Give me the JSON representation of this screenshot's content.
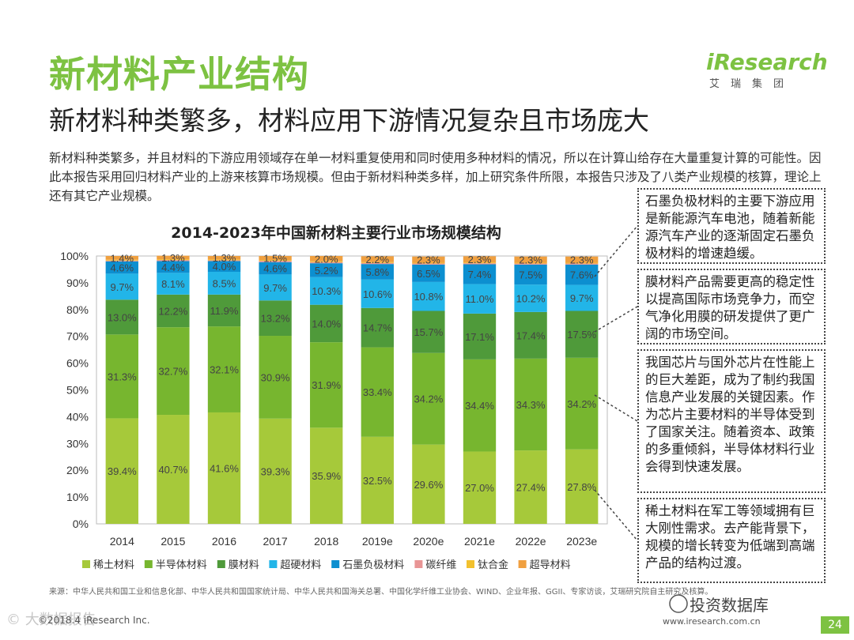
{
  "page": {
    "title": "新材料产业结构",
    "subtitle": "新材料种类繁多，材料应用下游情况复杂且市场庞大",
    "intro": "新材料种类繁多，并且材料的下游应用领域存在单一材料重复使用和同时使用多种材料的情况，所以在计算山给存在大量重复计算的可能性。因此本报告采用回归材料产业的上游来核算市场规模。但由于新材料种类多样，加上研究条件所限，本报告只涉及了八类产业规模的核算，理论上还有其它产业规模。",
    "source": "来源：中华人民共和国工业和信息化部、中华人民共和国国家统计局、中华人民共和国海关总署、中国化学纤维工业协会、WIND、企业年报、GGII、专家访谈，艾瑞研究院自主研究及核算。",
    "footer_left": "©2018.4 iResearch Inc.",
    "footer_right": "www.iresearch.com.cn",
    "page_number": "24"
  },
  "logo": {
    "main": "iResearch",
    "sub": "艾瑞集团"
  },
  "watermark": "© 大数据报告",
  "wechat_label": "投资数据库",
  "callouts": [
    {
      "text": "石墨负极材料的主要下游应用是新能源汽车电池，随着新能源汽车产业的逐渐固定石墨负极材料的增速趋缓。"
    },
    {
      "text": "膜材料产品需要更高的稳定性以提高国际市场竞争力，而空气净化用膜的研发提供了更广阔的市场空间。"
    },
    {
      "text": "我国芯片与国外芯片在性能上的巨大差距，成为了制约我国信息产业发展的关键因素。作为芯片主要材料的半导体受到了国家关注。随着资本、政策的多重倾斜，半导体材料行业会得到快速发展。"
    },
    {
      "text": "稀土材料在军工等领域拥有巨大刚性需求。去产能背景下，规模的增长转变为低端到高端产品的结构过渡。"
    }
  ],
  "chart_data": {
    "type": "bar",
    "stacked": true,
    "title": "2014-2023年中国新材料主要行业市场规模结构",
    "categories": [
      "2014",
      "2015",
      "2016",
      "2017",
      "2018",
      "2019e",
      "2020e",
      "2021e",
      "2022e",
      "2023e"
    ],
    "ylim": [
      0,
      100
    ],
    "ytick_labels": [
      "0%",
      "10%",
      "20%",
      "30%",
      "40%",
      "50%",
      "60%",
      "70%",
      "80%",
      "90%",
      "100%"
    ],
    "legend_position": "bottom",
    "series": [
      {
        "name": "稀土材料",
        "color": "#a6c93a",
        "values": [
          39.4,
          40.7,
          41.6,
          39.3,
          35.9,
          32.5,
          29.6,
          27.0,
          27.4,
          27.8
        ]
      },
      {
        "name": "半导体材料",
        "color": "#77b62f",
        "values": [
          31.3,
          32.7,
          32.1,
          30.9,
          31.9,
          33.4,
          34.2,
          34.4,
          34.3,
          34.2
        ]
      },
      {
        "name": "膜材料",
        "color": "#4f9a3a",
        "values": [
          13.0,
          12.2,
          11.9,
          13.2,
          14.0,
          14.7,
          15.7,
          17.1,
          17.4,
          17.5
        ]
      },
      {
        "name": "超硬材料",
        "color": "#22b5e8",
        "values": [
          9.7,
          8.1,
          8.5,
          9.7,
          10.3,
          10.6,
          10.8,
          11.0,
          10.2,
          9.7
        ]
      },
      {
        "name": "石墨负极材料",
        "color": "#0c8fd0",
        "values": [
          4.6,
          4.4,
          4.0,
          4.6,
          5.2,
          5.8,
          6.5,
          7.4,
          7.5,
          7.6
        ]
      },
      {
        "name": "碳纤维",
        "color": "#e89595",
        "values": [
          0.3,
          0.4,
          0.3,
          0.5,
          0.4,
          0.4,
          0.4,
          0.4,
          0.4,
          0.4
        ]
      },
      {
        "name": "钛合金",
        "color": "#f2c12e",
        "values": [
          0.3,
          0.3,
          0.3,
          0.3,
          0.3,
          0.3,
          0.3,
          0.3,
          0.3,
          0.3
        ]
      },
      {
        "name": "超导材料",
        "color": "#f0a040",
        "values": [
          1.4,
          1.3,
          1.3,
          1.5,
          2.0,
          2.2,
          2.3,
          2.3,
          2.3,
          2.3
        ]
      }
    ],
    "label_series": [
      0,
      1,
      2,
      3,
      4,
      7
    ],
    "data_labels": [
      [
        "39.4%",
        "40.7%",
        "41.6%",
        "39.3%",
        "35.9%",
        "32.5%",
        "29.6%",
        "27.0%",
        "27.4%",
        "27.8%"
      ],
      [
        "31.3%",
        "32.7%",
        "32.1%",
        "30.9%",
        "31.9%",
        "33.4%",
        "34.2%",
        "34.4%",
        "34.3%",
        "34.2%"
      ],
      [
        "13.0%",
        "12.2%",
        "11.9%",
        "13.2%",
        "14.0%",
        "14.7%",
        "15.7%",
        "17.1%",
        "17.4%",
        "17.5%"
      ],
      [
        "9.7%",
        "8.1%",
        "8.5%",
        "9.7%",
        "10.3%",
        "10.6%",
        "10.8%",
        "11.0%",
        "10.2%",
        "9.7%"
      ],
      [
        "4.6%",
        "4.4%",
        "4.0%",
        "4.6%",
        "5.2%",
        "5.8%",
        "6.5%",
        "7.4%",
        "7.5%",
        "7.6%"
      ],
      [],
      [],
      [
        "1.4%",
        "1.3%",
        "1.3%",
        "1.5%",
        "2.0%",
        "2.2%",
        "2.3%",
        "2.3%",
        "2.3%",
        "2.3%"
      ]
    ]
  }
}
